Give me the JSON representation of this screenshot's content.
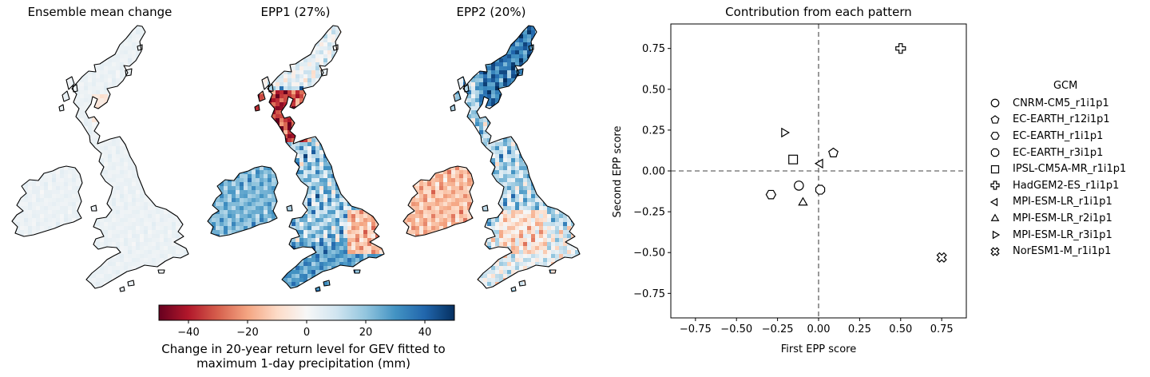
{
  "panels": [
    {
      "title": "Ensemble mean change",
      "pattern": "mean"
    },
    {
      "title": "EPP1 (27%)",
      "pattern": "epp1"
    },
    {
      "title": "EPP2 (20%)",
      "pattern": "epp2"
    }
  ],
  "colorbar": {
    "min": -50,
    "max": 50,
    "ticks": [
      -40,
      -20,
      0,
      20,
      40
    ],
    "tick_labels": [
      "−40",
      "−20",
      "0",
      "20",
      "40"
    ],
    "colormap": "RdBu",
    "label_line1": "Change in 20-year return level for GEV fitted to",
    "label_line2": "maximum 1-day precipitation (mm)"
  },
  "chart_data": {
    "type": "scatter",
    "title": "Contribution from each pattern",
    "xlabel": "First EPP score",
    "ylabel": "Second EPP score",
    "xlim": [
      -0.9,
      0.9
    ],
    "ylim": [
      -0.9,
      0.9
    ],
    "xticks": [
      -0.75,
      -0.5,
      -0.25,
      0.0,
      0.25,
      0.5,
      0.75
    ],
    "xtick_labels": [
      "−0.75",
      "−0.50",
      "−0.25",
      "0.00",
      "0.25",
      "0.50",
      "0.75"
    ],
    "yticks": [
      -0.75,
      -0.5,
      -0.25,
      0.0,
      0.25,
      0.5,
      0.75
    ],
    "ytick_labels": [
      "−0.75",
      "−0.50",
      "−0.25",
      "0.00",
      "0.25",
      "0.50",
      "0.75"
    ],
    "reference_lines": {
      "x": 0,
      "y": 0,
      "style": "dashed"
    },
    "legend_title": "GCM",
    "legend_position": "right",
    "series": [
      {
        "name": "CNRM-CM5_r1i1p1",
        "marker": "circle",
        "x": -0.12,
        "y": -0.09
      },
      {
        "name": "EC-EARTH_r12i1p1",
        "marker": "pentagon",
        "x": 0.09,
        "y": 0.11
      },
      {
        "name": "EC-EARTH_r1i1p1",
        "marker": "hexagon",
        "x": -0.29,
        "y": -0.145
      },
      {
        "name": "EC-EARTH_r3i1p1",
        "marker": "octagon",
        "x": 0.01,
        "y": -0.115
      },
      {
        "name": "IPSL-CM5A-MR_r1i1p1",
        "marker": "square",
        "x": -0.155,
        "y": 0.07
      },
      {
        "name": "HadGEM2-ES_r1i1p1",
        "marker": "plus",
        "x": 0.5,
        "y": 0.75
      },
      {
        "name": "MPI-ESM-LR_r1i1p1",
        "marker": "triangle-left",
        "x": 0.01,
        "y": 0.045
      },
      {
        "name": "MPI-ESM-LR_r2i1p1",
        "marker": "triangle-up",
        "x": -0.095,
        "y": -0.19
      },
      {
        "name": "MPI-ESM-LR_r3i1p1",
        "marker": "triangle-right",
        "x": -0.21,
        "y": 0.235
      },
      {
        "name": "NorESM1-M_r1i1p1",
        "marker": "x-cross",
        "x": 0.75,
        "y": -0.53
      }
    ]
  }
}
